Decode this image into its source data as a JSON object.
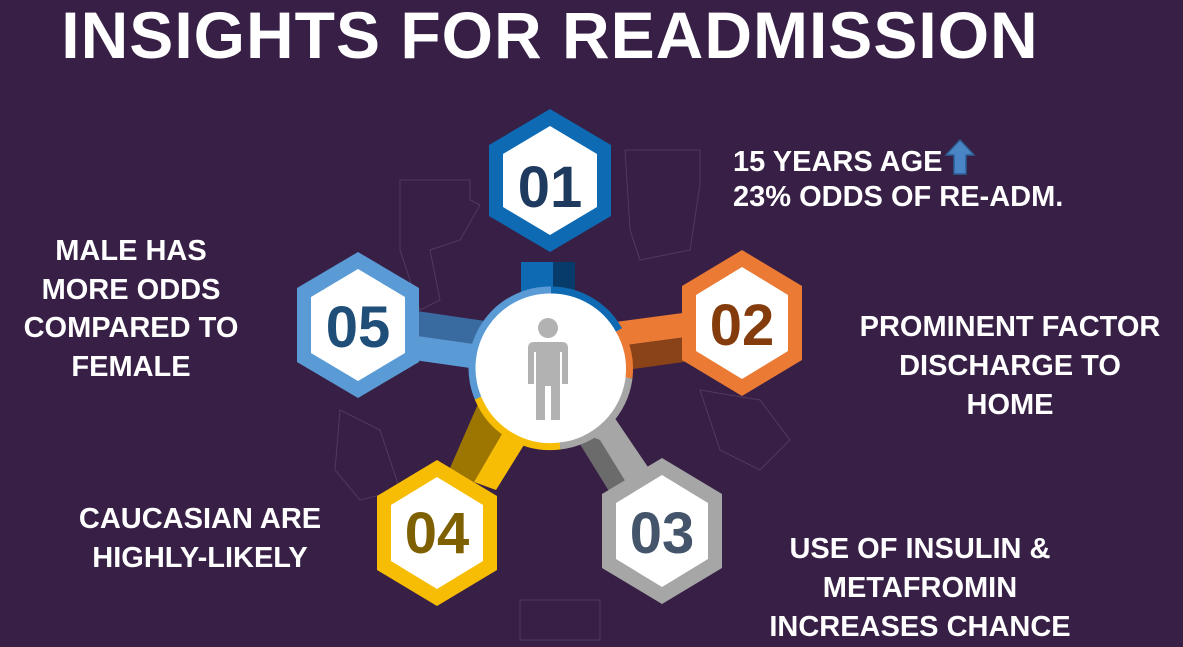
{
  "title": "INSIGHTS FOR READMISSION",
  "center_icon": "person-icon",
  "colors": {
    "background": "#371f45",
    "blue_dark": "#0e6ab3",
    "orange": "#ea7a34",
    "gray": "#a6a6a6",
    "gold": "#f7bd05",
    "blue_light": "#5b9bd5"
  },
  "insights": [
    {
      "number": "01",
      "lines": [
        "15 YEARS AGE",
        "23% ODDS OF RE-ADM."
      ],
      "indicator": "up-arrow-icon"
    },
    {
      "number": "02",
      "lines": [
        "PROMINENT FACTOR",
        "DISCHARGE TO",
        "HOME"
      ]
    },
    {
      "number": "03",
      "lines": [
        "USE OF INSULIN &",
        "METAFROMIN",
        "INCREASES CHANCE"
      ]
    },
    {
      "number": "04",
      "lines": [
        "CAUCASIAN ARE",
        "HIGHLY-LIKELY"
      ]
    },
    {
      "number": "05",
      "lines": [
        "MALE HAS",
        "MORE ODDS",
        "COMPARED TO",
        "FEMALE"
      ]
    }
  ]
}
